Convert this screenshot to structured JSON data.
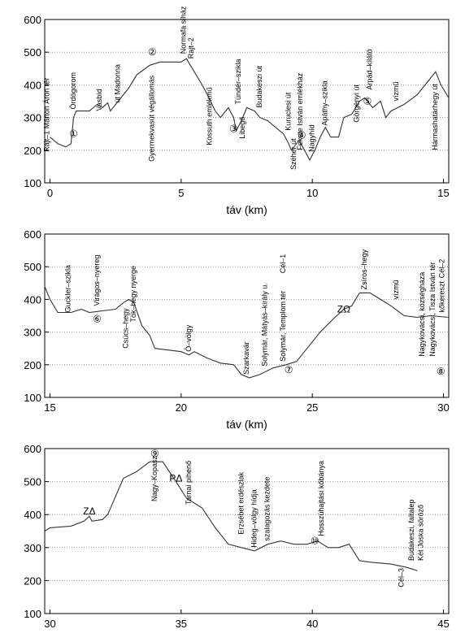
{
  "chart_data": [
    {
      "type": "line",
      "xlabel": "táv (km)",
      "xlim": [
        -0.2,
        15.2
      ],
      "ylim": [
        100,
        600
      ],
      "xticks": [
        0,
        5,
        10,
        15
      ],
      "yticks": [
        100,
        200,
        300,
        400,
        500,
        600
      ],
      "grid": true,
      "color": "#333333",
      "x": [
        0,
        0.3,
        0.6,
        0.8,
        0.9,
        1.0,
        1.5,
        1.8,
        2.0,
        2.2,
        2.3,
        2.6,
        3.0,
        3.3,
        3.8,
        4.2,
        5.0,
        5.2,
        5.5,
        5.8,
        6.0,
        6.3,
        6.5,
        6.8,
        7.0,
        7.1,
        7.3,
        7.5,
        7.8,
        8.0,
        8.3,
        8.6,
        8.9,
        9.1,
        9.2,
        9.5,
        9.7,
        9.9,
        10.1,
        10.3,
        10.5,
        10.7,
        11.0,
        11.2,
        11.5,
        11.8,
        12.0,
        12.3,
        12.6,
        12.8,
        13.0,
        13.5,
        14.0,
        14.5,
        14.7,
        14.9,
        15.2
      ],
      "values": [
        240,
        220,
        210,
        220,
        300,
        320,
        320,
        340,
        330,
        345,
        320,
        350,
        390,
        430,
        460,
        470,
        470,
        480,
        440,
        400,
        370,
        320,
        300,
        330,
        300,
        260,
        290,
        330,
        320,
        300,
        290,
        270,
        250,
        220,
        200,
        230,
        200,
        170,
        200,
        240,
        270,
        240,
        240,
        300,
        310,
        350,
        360,
        330,
        350,
        300,
        320,
        340,
        370,
        420,
        440,
        400,
        360
      ],
      "annotations": [
        {
          "x": -0.1,
          "y": 195,
          "text": "Rajt–1 Márton Áron tér",
          "vertical": true
        },
        {
          "x": 0.9,
          "y": 325,
          "text": "Ördögorom",
          "vertical": true
        },
        {
          "x": 0.9,
          "y": 250,
          "text": "①",
          "vertical": false
        },
        {
          "x": 1.9,
          "y": 320,
          "text": "Vasbíd",
          "vertical": true
        },
        {
          "x": 2.6,
          "y": 345,
          "text": "út Madonna",
          "vertical": true
        },
        {
          "x": 3.9,
          "y": 500,
          "text": "②",
          "vertical": false
        },
        {
          "x": 3.9,
          "y": 165,
          "text": "Gyermekvasút végállomás",
          "vertical": true
        },
        {
          "x": 5.1,
          "y": 495,
          "text": "Normafa síház",
          "vertical": true
        },
        {
          "x": 5.4,
          "y": 480,
          "text": "Rajt–2",
          "vertical": true
        },
        {
          "x": 6.1,
          "y": 215,
          "text": "Kossuth emlékmű",
          "vertical": true
        },
        {
          "x": 7.2,
          "y": 340,
          "text": "Tündér–szikla",
          "vertical": true
        },
        {
          "x": 7.0,
          "y": 265,
          "text": "③",
          "vertical": false
        },
        {
          "x": 7.35,
          "y": 235,
          "text": "Libegő",
          "vertical": true
        },
        {
          "x": 8.0,
          "y": 330,
          "text": "Budakeszi út",
          "vertical": true
        },
        {
          "x": 9.1,
          "y": 260,
          "text": "Kuruclesi út",
          "vertical": true
        },
        {
          "x": 9.3,
          "y": 140,
          "text": "Széher út",
          "vertical": true
        },
        {
          "x": 9.6,
          "y": 245,
          "text": "④",
          "vertical": false
        },
        {
          "x": 9.55,
          "y": 200,
          "text": "Fekete István emlékház",
          "vertical": true
        },
        {
          "x": 10.0,
          "y": 195,
          "text": "Nagyhíd",
          "vertical": true
        },
        {
          "x": 10.5,
          "y": 275,
          "text": "Apáthy–szikla",
          "vertical": true
        },
        {
          "x": 11.7,
          "y": 285,
          "text": "Görgényi út",
          "vertical": true
        },
        {
          "x": 12.2,
          "y": 385,
          "text": "Árpád–kilátó",
          "vertical": true
        },
        {
          "x": 12.1,
          "y": 350,
          "text": "⑤",
          "vertical": false
        },
        {
          "x": 13.2,
          "y": 350,
          "text": "vízmű",
          "vertical": true
        },
        {
          "x": 14.7,
          "y": 200,
          "text": "Hármashatárhegy út",
          "vertical": true
        }
      ]
    },
    {
      "type": "line",
      "xlabel": "táv (km)",
      "xlim": [
        14.8,
        30.2
      ],
      "ylim": [
        100,
        600
      ],
      "xticks": [
        15,
        20,
        25,
        30
      ],
      "yticks": [
        100,
        200,
        300,
        400,
        500,
        600
      ],
      "grid": true,
      "color": "#333333",
      "x": [
        14.8,
        15.0,
        15.3,
        15.8,
        16.2,
        16.5,
        17.0,
        17.5,
        17.8,
        18.0,
        18.2,
        18.5,
        18.8,
        19.0,
        19.5,
        20.0,
        20.3,
        20.5,
        21.0,
        21.5,
        22.0,
        22.3,
        22.6,
        23.0,
        23.5,
        24.0,
        24.4,
        24.8,
        25.3,
        25.8,
        26.2,
        26.5,
        26.8,
        27.2,
        27.6,
        28.0,
        28.5,
        29.0,
        29.5,
        30.2
      ],
      "values": [
        440,
        400,
        360,
        360,
        370,
        360,
        365,
        370,
        390,
        400,
        390,
        320,
        290,
        250,
        245,
        240,
        230,
        240,
        220,
        205,
        200,
        170,
        160,
        170,
        190,
        200,
        210,
        250,
        300,
        340,
        370,
        380,
        420,
        420,
        400,
        380,
        350,
        345,
        350,
        345
      ],
      "annotations": [
        {
          "x": 15.7,
          "y": 360,
          "text": "Guckler–szikla",
          "vertical": true
        },
        {
          "x": 16.8,
          "y": 380,
          "text": "Virágos–nyereg",
          "vertical": true
        },
        {
          "x": 16.8,
          "y": 340,
          "text": "⑥",
          "vertical": false
        },
        {
          "x": 17.9,
          "y": 250,
          "text": "Csúcs–hegy",
          "vertical": true
        },
        {
          "x": 18.2,
          "y": 330,
          "text": "Tök–hegy nyerge",
          "vertical": true
        },
        {
          "x": 20.3,
          "y": 240,
          "text": "Ó–völgy",
          "vertical": true
        },
        {
          "x": 22.5,
          "y": 170,
          "text": "Szarkavár",
          "vertical": true
        },
        {
          "x": 23.2,
          "y": 195,
          "text": "Solymár, Mátyás–király u.",
          "vertical": true
        },
        {
          "x": 23.9,
          "y": 480,
          "text": "Cél–1",
          "vertical": true
        },
        {
          "x": 23.9,
          "y": 210,
          "text": "Solymár, Templom tér",
          "vertical": true
        },
        {
          "x": 24.1,
          "y": 185,
          "text": "⑦",
          "vertical": false
        },
        {
          "x": 26.2,
          "y": 370,
          "text": "ZΩ",
          "vertical": false
        },
        {
          "x": 27.0,
          "y": 430,
          "text": "Zsíros–hegy",
          "vertical": true
        },
        {
          "x": 28.2,
          "y": 400,
          "text": "vízmű",
          "vertical": true
        },
        {
          "x": 29.2,
          "y": 225,
          "text": "Nagykovácsi, községháza",
          "vertical": true
        },
        {
          "x": 29.6,
          "y": 225,
          "text": "Nagykovácsi, Tisza István tér",
          "vertical": true
        },
        {
          "x": 29.95,
          "y": 465,
          "text": "Cél–2",
          "vertical": true
        },
        {
          "x": 29.95,
          "y": 360,
          "text": "kőkereszt",
          "vertical": true
        },
        {
          "x": 29.9,
          "y": 180,
          "text": "⑧",
          "vertical": false
        }
      ]
    },
    {
      "type": "line",
      "xlim": [
        29.8,
        45.2
      ],
      "ylim": [
        100,
        600
      ],
      "xticks": [
        30,
        35,
        40,
        45
      ],
      "yticks": [
        100,
        200,
        300,
        400,
        500,
        600
      ],
      "grid": true,
      "color": "#333333",
      "x": [
        29.8,
        30.0,
        30.8,
        31.3,
        31.5,
        31.6,
        32.0,
        32.2,
        32.8,
        33.3,
        33.8,
        34.3,
        34.8,
        35.2,
        35.8,
        36.3,
        36.8,
        37.3,
        37.8,
        38.3,
        38.8,
        39.3,
        39.8,
        40.2,
        40.6,
        41.0,
        41.4,
        41.8,
        42.3,
        43.0,
        43.6,
        44.0
      ],
      "values": [
        350,
        360,
        365,
        380,
        395,
        380,
        385,
        400,
        510,
        530,
        560,
        560,
        500,
        450,
        420,
        360,
        310,
        300,
        290,
        310,
        320,
        310,
        310,
        320,
        300,
        300,
        310,
        260,
        255,
        250,
        240,
        230
      ],
      "annotations": [
        {
          "x": 31.5,
          "y": 410,
          "text": "ZΔ",
          "vertical": false
        },
        {
          "x": 34.0,
          "y": 585,
          "text": "⑨",
          "vertical": false
        },
        {
          "x": 34.0,
          "y": 440,
          "text": "Nagy–Kopasz",
          "vertical": true
        },
        {
          "x": 34.8,
          "y": 510,
          "text": "PΔ",
          "vertical": false
        },
        {
          "x": 35.3,
          "y": 430,
          "text": "Tarnai pihenő",
          "vertical": true
        },
        {
          "x": 37.3,
          "y": 340,
          "text": "Erzsébet erdészlak",
          "vertical": true
        },
        {
          "x": 37.8,
          "y": 300,
          "text": "Hideg–völgy hídja",
          "vertical": true
        },
        {
          "x": 38.3,
          "y": 320,
          "text": "szalagozás kezdete",
          "vertical": true
        },
        {
          "x": 40.1,
          "y": 320,
          "text": "⑩",
          "vertical": false
        },
        {
          "x": 40.35,
          "y": 335,
          "text": "Hosszúhajtási kőbánya",
          "vertical": true
        },
        {
          "x": 43.8,
          "y": 260,
          "text": "Budakeszi, faltalep",
          "vertical": true
        },
        {
          "x": 44.15,
          "y": 260,
          "text": "Két Jóska söröző",
          "vertical": true
        },
        {
          "x": 43.4,
          "y": 180,
          "text": "Cél–3",
          "vertical": true
        }
      ]
    }
  ]
}
